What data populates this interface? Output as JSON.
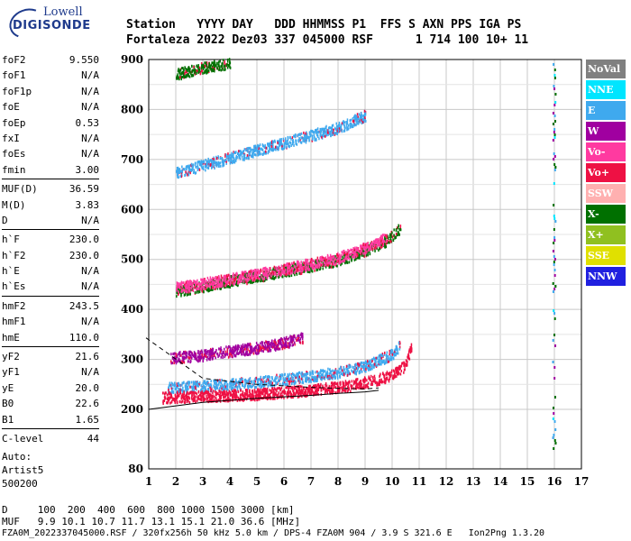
{
  "logo": {
    "top": "Lowell",
    "main": "DIGISONDE"
  },
  "header": {
    "labels": "Station   YYYY DAY   DDD HHMMSS P1  FFS S AXN PPS IGA PS",
    "values": "Fortaleza 2022 Dez03 337 045000 RSF      1 714 100 10+ 11"
  },
  "params": [
    {
      "k": "foF2",
      "v": "9.550"
    },
    {
      "k": "foF1",
      "v": "N/A"
    },
    {
      "k": "foF1p",
      "v": "N/A"
    },
    {
      "k": "foE",
      "v": "N/A"
    },
    {
      "k": "foEp",
      "v": "0.53"
    },
    {
      "k": "fxI",
      "v": "N/A"
    },
    {
      "k": "foEs",
      "v": "N/A"
    },
    {
      "k": "fmin",
      "v": "3.00"
    },
    {
      "k": "MUF(D)",
      "v": "36.59"
    },
    {
      "k": "M(D)",
      "v": "3.83"
    },
    {
      "k": "D",
      "v": "N/A"
    },
    {
      "k": "h`F",
      "v": "230.0"
    },
    {
      "k": "h`F2",
      "v": "230.0"
    },
    {
      "k": "h`E",
      "v": "N/A"
    },
    {
      "k": "h`Es",
      "v": "N/A"
    },
    {
      "k": "hmF2",
      "v": "243.5"
    },
    {
      "k": "hmF1",
      "v": "N/A"
    },
    {
      "k": "hmE",
      "v": "110.0"
    },
    {
      "k": "yF2",
      "v": "21.6"
    },
    {
      "k": "yF1",
      "v": "N/A"
    },
    {
      "k": "yE",
      "v": "20.0"
    },
    {
      "k": "B0",
      "v": "22.6"
    },
    {
      "k": "B1",
      "v": "1.65"
    },
    {
      "k": "C-level",
      "v": "44"
    }
  ],
  "auto": {
    "line1": "Auto:",
    "line2": "Artist5",
    "line3": "500200"
  },
  "legend": [
    {
      "label": "NoVal",
      "color": "#808080"
    },
    {
      "label": "NNE",
      "color": "#00e5ff"
    },
    {
      "label": "E",
      "color": "#3fa9ee"
    },
    {
      "label": "W",
      "color": "#a000a0"
    },
    {
      "label": "Vo-",
      "color": "#ff3aa0"
    },
    {
      "label": "Vo+",
      "color": "#ee1144"
    },
    {
      "label": "SSW",
      "color": "#ffb0b0"
    },
    {
      "label": "X-",
      "color": "#007000"
    },
    {
      "label": "X+",
      "color": "#90c020"
    },
    {
      "label": "SSE",
      "color": "#e0e000"
    },
    {
      "label": "NNW",
      "color": "#2020e0"
    }
  ],
  "footer": {
    "line1": "D     100  200  400  600  800 1000 1500 3000 [km]",
    "line2": "MUF   9.9 10.1 10.7 11.7 13.1 15.1 21.0 36.6 [MHz]",
    "line3": "FZA0M_2022337045000.RSF / 320fx256h 50 kHz 5.0 km / DPS-4 FZA0M 904 / 3.9 S 321.6 E   Ion2Png 1.3.20"
  },
  "chart_data": {
    "type": "scatter",
    "x_ticks": [
      1,
      2,
      3,
      4,
      5,
      6,
      7,
      8,
      9,
      10,
      11,
      12,
      13,
      14,
      15,
      16,
      17
    ],
    "y_ticks": [
      80,
      200,
      300,
      400,
      500,
      600,
      700,
      800,
      900
    ],
    "xlim": [
      1,
      17
    ],
    "ylim": [
      80,
      900
    ],
    "grid": true,
    "traces": [
      {
        "name": "E",
        "color": "#3fa9ee",
        "x": [
          1.7,
          3,
          4,
          5,
          6,
          7,
          8,
          9,
          9.5,
          10,
          10.3
        ],
        "y": [
          245,
          248,
          252,
          256,
          262,
          268,
          276,
          288,
          300,
          312,
          330
        ]
      },
      {
        "name": "Vo+",
        "color": "#ee1144",
        "x": [
          1.5,
          3,
          5,
          7,
          8.5,
          9.5,
          10,
          10.5,
          10.7
        ],
        "y": [
          225,
          228,
          232,
          240,
          250,
          262,
          272,
          290,
          330
        ]
      },
      {
        "name": "W",
        "color": "#a000a0",
        "x": [
          1.8,
          3,
          4,
          5,
          6,
          6.7
        ],
        "y": [
          305,
          310,
          318,
          325,
          335,
          345
        ]
      },
      {
        "name": "X-",
        "color": "#007000",
        "x": [
          2,
          4,
          6,
          8,
          9,
          9.8,
          10.3
        ],
        "y": [
          438,
          458,
          478,
          500,
          520,
          540,
          565
        ]
      },
      {
        "name": "Vo-",
        "color": "#ff3aa0",
        "x": [
          2,
          4,
          6,
          8,
          9,
          9.8
        ],
        "y": [
          445,
          462,
          482,
          505,
          525,
          545
        ]
      },
      {
        "name": "E",
        "color": "#3fa9ee",
        "x": [
          2,
          4,
          6,
          8,
          9
        ],
        "y": [
          675,
          705,
          735,
          765,
          790
        ]
      },
      {
        "name": "X-",
        "color": "#007000",
        "x": [
          2,
          3,
          4
        ],
        "y": [
          872,
          885,
          895
        ]
      }
    ],
    "profile": {
      "x": [
        0.9,
        3,
        5,
        7,
        8,
        9,
        9.5
      ],
      "y": [
        343,
        262,
        250,
        244,
        242,
        241,
        243
      ]
    },
    "profile_inner": {
      "x": [
        1,
        3,
        5,
        7,
        8,
        9,
        9.5
      ],
      "y": [
        200,
        214,
        222,
        228,
        232,
        235,
        238
      ]
    },
    "vertical_trace": {
      "x": 16,
      "y": [
        90,
        900
      ]
    }
  }
}
